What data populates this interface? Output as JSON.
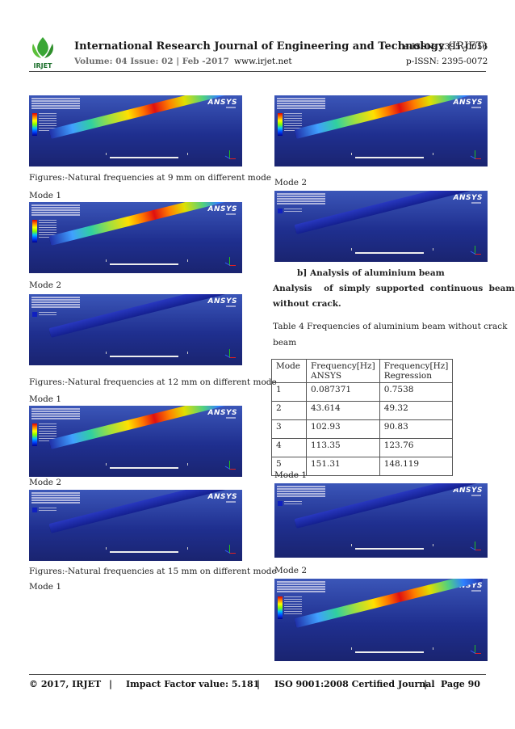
{
  "header": {
    "journal_title": "International Research Journal of Engineering and Technology",
    "journal_abbr": "(IRJET)",
    "eissn": "e-ISSN: 2395 -0056",
    "issue": "Volume: 04 Issue: 02 | Feb -2017",
    "website": "www.irjet.net",
    "pissn": "p-ISSN: 2395-0072",
    "logo_text": "IRJET"
  },
  "left_column": {
    "caption_9mm": "Figures:-Natural frequencies at 9 mm on different mode",
    "mode1_a": "Mode 1",
    "mode2_a": "Mode 2",
    "caption_12mm": "Figures:-Natural frequencies at 12 mm on different mode",
    "mode1_b": "Mode 1",
    "mode2_b": "Mode 2",
    "caption_15mm": "Figures:-Natural frequencies at 15 mm on different mode",
    "mode1_c": "Mode 1"
  },
  "right_column": {
    "mode2_top": "Mode 2",
    "section_heading": "b] Analysis of aluminium beam",
    "analysis_line1": "Analysis    of  simply  supported  continuous  beam",
    "analysis_line2": "without crack.",
    "table_caption_line1": "Table 4 Frequencies of aluminium beam without crack",
    "table_caption_line2": "beam",
    "mode1_label": "Mode 1",
    "mode2_label": "Mode 2"
  },
  "table": {
    "headers": [
      "Mode",
      "Frequency[Hz]",
      "ANSYS",
      "Frequency[Hz]",
      "Regression"
    ],
    "rows": [
      {
        "mode": "1",
        "ansys": "0.087371",
        "regression": "0.7538"
      },
      {
        "mode": "2",
        "ansys": "43.614",
        "regression": "49.32"
      },
      {
        "mode": "3",
        "ansys": "102.93",
        "regression": "90.83"
      },
      {
        "mode": "4",
        "ansys": "113.35",
        "regression": "123.76"
      },
      {
        "mode": "5",
        "ansys": "151.31",
        "regression": "148.119"
      }
    ]
  },
  "sim_brand": "ANSYS",
  "footer": {
    "copyright": "© 2017, IRJET",
    "impact": "Impact Factor value: 5.181",
    "iso": "ISO 9001:2008 Certified Journal",
    "page": "Page 90",
    "sep": "|"
  },
  "colors": {
    "header_rule": "#444444",
    "issue_grey": "#6b6b6b",
    "sim_background": "#1f2f8f"
  }
}
